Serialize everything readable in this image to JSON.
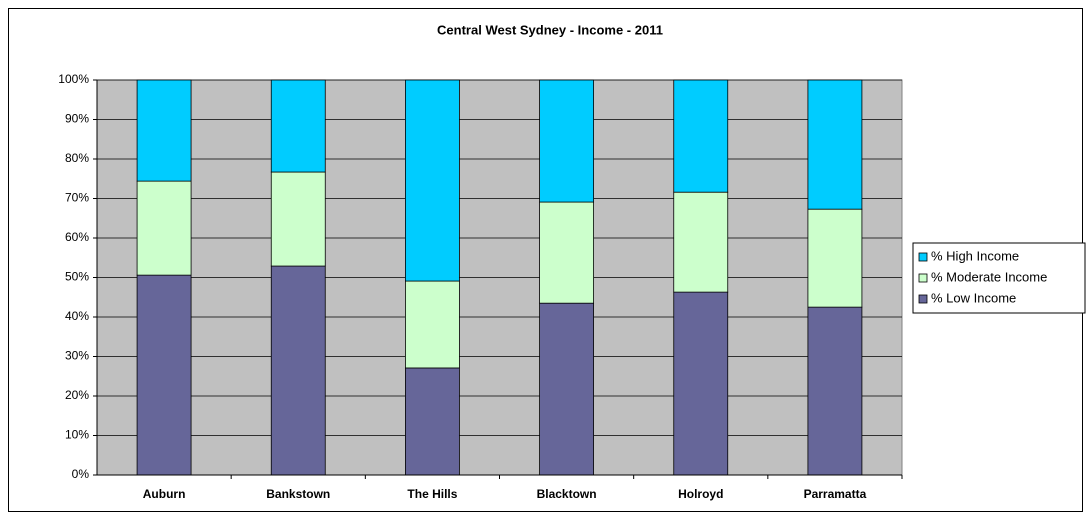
{
  "chart_data": {
    "type": "stacked_bar",
    "title": "Central West Sydney - Income - 2011",
    "categories": [
      "Auburn",
      "Bankstown",
      "The Hills",
      "Blacktown",
      "Holroyd",
      "Parramatta"
    ],
    "series": [
      {
        "name": "% Low Income",
        "color": "#666699",
        "values": [
          50.6,
          52.9,
          27.1,
          43.5,
          46.3,
          42.5
        ]
      },
      {
        "name": "% Moderate Income",
        "color": "#ccffcc",
        "values": [
          23.8,
          23.8,
          22.0,
          25.6,
          25.3,
          24.8
        ]
      },
      {
        "name": "% High Income",
        "color": "#00ccff",
        "values": [
          25.6,
          23.3,
          50.9,
          30.9,
          28.4,
          32.7
        ]
      }
    ],
    "ylim": [
      0,
      100
    ],
    "yticks": [
      {
        "value": 0,
        "label": "0%"
      },
      {
        "value": 10,
        "label": "10%"
      },
      {
        "value": 20,
        "label": "20%"
      },
      {
        "value": 30,
        "label": "30%"
      },
      {
        "value": 40,
        "label": "40%"
      },
      {
        "value": 50,
        "label": "50%"
      },
      {
        "value": 60,
        "label": "60%"
      },
      {
        "value": 70,
        "label": "70%"
      },
      {
        "value": 80,
        "label": "80%"
      },
      {
        "value": 90,
        "label": "90%"
      },
      {
        "value": 100,
        "label": "100%"
      }
    ],
    "grid": true,
    "legend": "right"
  }
}
